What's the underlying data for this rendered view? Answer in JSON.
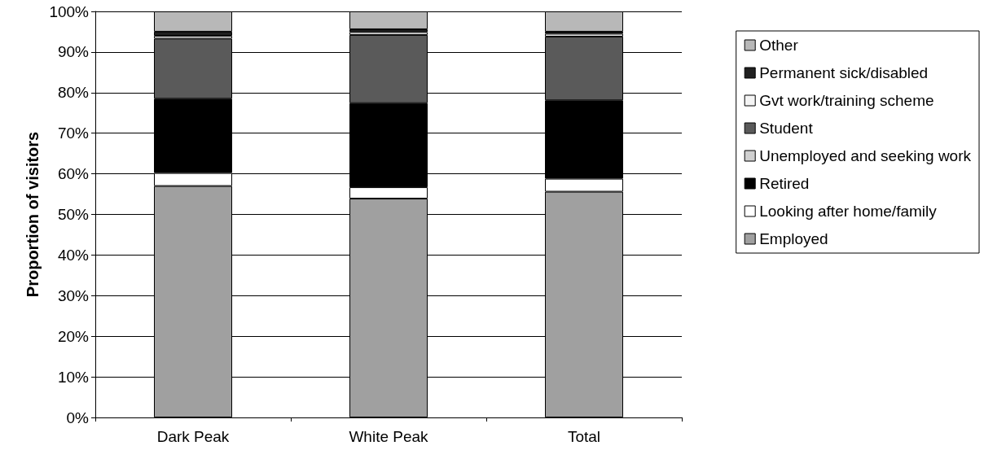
{
  "chart_data": {
    "type": "bar",
    "stacked": true,
    "ylabel": "Proportion of visitors",
    "categories": [
      "Dark Peak",
      "White Peak",
      "Total"
    ],
    "series": [
      {
        "name": "Employed",
        "color": "#a0a0a0",
        "values": [
          57.0,
          53.9,
          55.6
        ]
      },
      {
        "name": "Looking after home/family",
        "color": "#ffffff",
        "values": [
          3.2,
          2.8,
          3.2
        ]
      },
      {
        "name": "Retired",
        "color": "#000000",
        "values": [
          18.3,
          20.7,
          19.3
        ]
      },
      {
        "name": "Unemployed and seeking work",
        "color": "#d0d0d0",
        "values": [
          null,
          null,
          null
        ]
      },
      {
        "name": "Student",
        "color": "#5a5a5a",
        "values": [
          14.8,
          16.8,
          15.7
        ]
      },
      {
        "name": "Gvt work/training scheme",
        "color": "#f4f4f4",
        "values": [
          0.7,
          0.7,
          0.7
        ]
      },
      {
        "name": "Permanent sick/disabled",
        "color": "#202020",
        "values": [
          1.0,
          0.7,
          0.5
        ]
      },
      {
        "name": "Other",
        "color": "#b8b8b8",
        "values": [
          5.0,
          4.4,
          5.0
        ]
      }
    ],
    "ylim": [
      0,
      100
    ],
    "yticks": [
      {
        "value": 0,
        "label": "0%"
      },
      {
        "value": 10,
        "label": "10%"
      },
      {
        "value": 20,
        "label": "20%"
      },
      {
        "value": 30,
        "label": "30%"
      },
      {
        "value": 40,
        "label": "40%"
      },
      {
        "value": 50,
        "label": "50%"
      },
      {
        "value": 60,
        "label": "60%"
      },
      {
        "value": 70,
        "label": "70%"
      },
      {
        "value": 80,
        "label": "80%"
      },
      {
        "value": 90,
        "label": "90%"
      },
      {
        "value": 100,
        "label": "100%"
      }
    ],
    "grid": "y",
    "legend": "right"
  }
}
